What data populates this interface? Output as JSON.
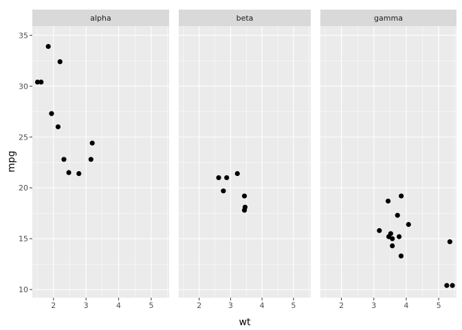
{
  "chart_data": {
    "type": "scatter",
    "xlabel": "wt",
    "ylabel": "mpg",
    "xlim": [
      1.35,
      5.55
    ],
    "ylim": [
      9.2,
      35.9
    ],
    "x_ticks": [
      2,
      3,
      4,
      5
    ],
    "y_ticks": [
      10,
      15,
      20,
      25,
      30,
      35
    ],
    "grid": true,
    "facets": [
      {
        "label": "alpha",
        "points": [
          {
            "x": 1.51,
            "y": 30.4
          },
          {
            "x": 1.62,
            "y": 30.4
          },
          {
            "x": 1.84,
            "y": 33.9
          },
          {
            "x": 1.94,
            "y": 27.3
          },
          {
            "x": 2.14,
            "y": 26.0
          },
          {
            "x": 2.2,
            "y": 32.4
          },
          {
            "x": 2.32,
            "y": 22.8
          },
          {
            "x": 2.47,
            "y": 21.5
          },
          {
            "x": 2.78,
            "y": 21.4
          },
          {
            "x": 3.15,
            "y": 22.8
          },
          {
            "x": 3.19,
            "y": 24.4
          }
        ]
      },
      {
        "label": "beta",
        "points": [
          {
            "x": 2.62,
            "y": 21.0
          },
          {
            "x": 2.77,
            "y": 19.7
          },
          {
            "x": 2.875,
            "y": 21.0
          },
          {
            "x": 3.215,
            "y": 21.4
          },
          {
            "x": 3.44,
            "y": 19.2
          },
          {
            "x": 3.44,
            "y": 17.8
          },
          {
            "x": 3.46,
            "y": 18.1
          }
        ]
      },
      {
        "label": "gamma",
        "points": [
          {
            "x": 3.17,
            "y": 15.8
          },
          {
            "x": 3.44,
            "y": 18.7
          },
          {
            "x": 3.46,
            "y": 15.2
          },
          {
            "x": 3.52,
            "y": 15.5
          },
          {
            "x": 3.57,
            "y": 14.3
          },
          {
            "x": 3.57,
            "y": 15.0
          },
          {
            "x": 3.73,
            "y": 17.3
          },
          {
            "x": 3.78,
            "y": 15.2
          },
          {
            "x": 3.84,
            "y": 13.3
          },
          {
            "x": 3.845,
            "y": 19.2
          },
          {
            "x": 4.07,
            "y": 16.4
          },
          {
            "x": 5.25,
            "y": 10.4
          },
          {
            "x": 5.345,
            "y": 14.7
          },
          {
            "x": 5.424,
            "y": 10.4
          }
        ]
      }
    ]
  },
  "style": {
    "panel_background": "#ebebeb",
    "strip_background": "#d9d9d9",
    "grid_major": "#ffffff",
    "point_color": "#000000"
  }
}
